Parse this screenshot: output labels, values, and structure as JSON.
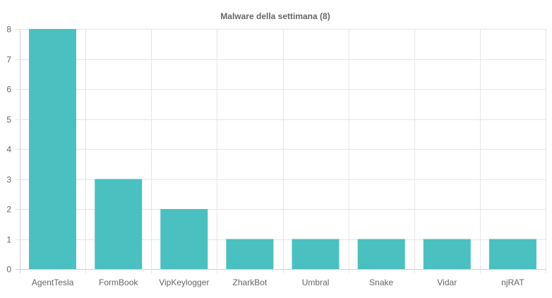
{
  "chart_data": {
    "type": "bar",
    "title": "Malware della settimana (8)",
    "xlabel": "",
    "ylabel": "",
    "categories": [
      "AgentTesla",
      "FormBook",
      "VipKeylogger",
      "ZharkBot",
      "Umbral",
      "Snake",
      "Vidar",
      "njRAT"
    ],
    "values": [
      8,
      3,
      2,
      1,
      1,
      1,
      1,
      1
    ],
    "ylim": [
      0,
      8
    ],
    "yticks": [
      0,
      1,
      2,
      3,
      4,
      5,
      6,
      7,
      8
    ],
    "grid": true,
    "legend": "none",
    "bar_color": "#4bc0c0"
  }
}
